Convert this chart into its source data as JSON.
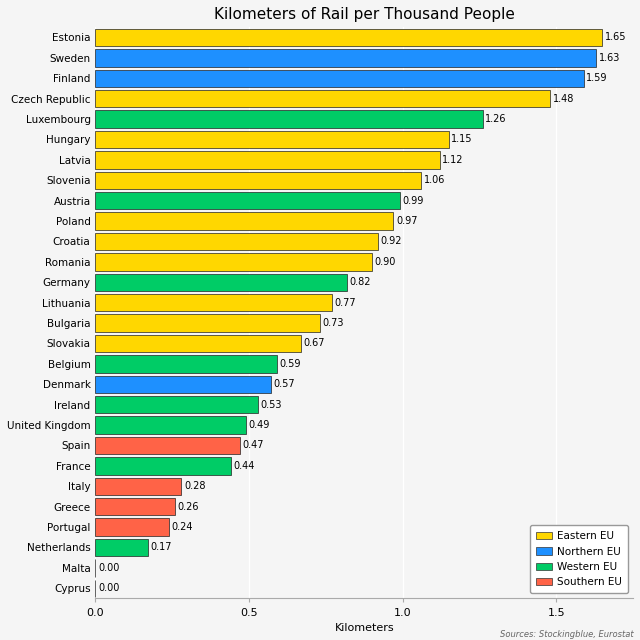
{
  "title": "Kilometers of Rail per Thousand People",
  "xlabel": "Kilometers",
  "source": "Sources: Stockingblue, Eurostat",
  "countries": [
    "Estonia",
    "Sweden",
    "Finland",
    "Czech Republic",
    "Luxembourg",
    "Hungary",
    "Latvia",
    "Slovenia",
    "Austria",
    "Poland",
    "Croatia",
    "Romania",
    "Germany",
    "Lithuania",
    "Bulgaria",
    "Slovakia",
    "Belgium",
    "Denmark",
    "Ireland",
    "United Kingdom",
    "Spain",
    "France",
    "Italy",
    "Greece",
    "Portugal",
    "Netherlands",
    "Malta",
    "Cyprus"
  ],
  "values": [
    1.65,
    1.63,
    1.59,
    1.48,
    1.26,
    1.15,
    1.12,
    1.06,
    0.99,
    0.97,
    0.92,
    0.9,
    0.82,
    0.77,
    0.73,
    0.67,
    0.59,
    0.57,
    0.53,
    0.49,
    0.47,
    0.44,
    0.28,
    0.26,
    0.24,
    0.17,
    0.0,
    0.0
  ],
  "regions": [
    "Eastern EU",
    "Northern EU",
    "Northern EU",
    "Eastern EU",
    "Western EU",
    "Eastern EU",
    "Eastern EU",
    "Eastern EU",
    "Western EU",
    "Eastern EU",
    "Eastern EU",
    "Eastern EU",
    "Western EU",
    "Eastern EU",
    "Eastern EU",
    "Eastern EU",
    "Western EU",
    "Northern EU",
    "Western EU",
    "Western EU",
    "Southern EU",
    "Western EU",
    "Southern EU",
    "Southern EU",
    "Southern EU",
    "Western EU",
    "Southern EU",
    "Southern EU"
  ],
  "region_colors": {
    "Eastern EU": "#FFD700",
    "Northern EU": "#1E90FF",
    "Western EU": "#00CC66",
    "Southern EU": "#FF6347"
  },
  "legend_order": [
    "Eastern EU",
    "Northern EU",
    "Western EU",
    "Southern EU"
  ],
  "background_color": "#F5F5F5",
  "bar_edge_color": "#222222",
  "xlim": [
    0,
    1.75
  ],
  "xticks": [
    0.0,
    0.5,
    1.0,
    1.5
  ],
  "bar_height": 0.85,
  "label_fontsize": 7.5,
  "title_fontsize": 11,
  "tick_fontsize": 8,
  "value_fontsize": 7
}
